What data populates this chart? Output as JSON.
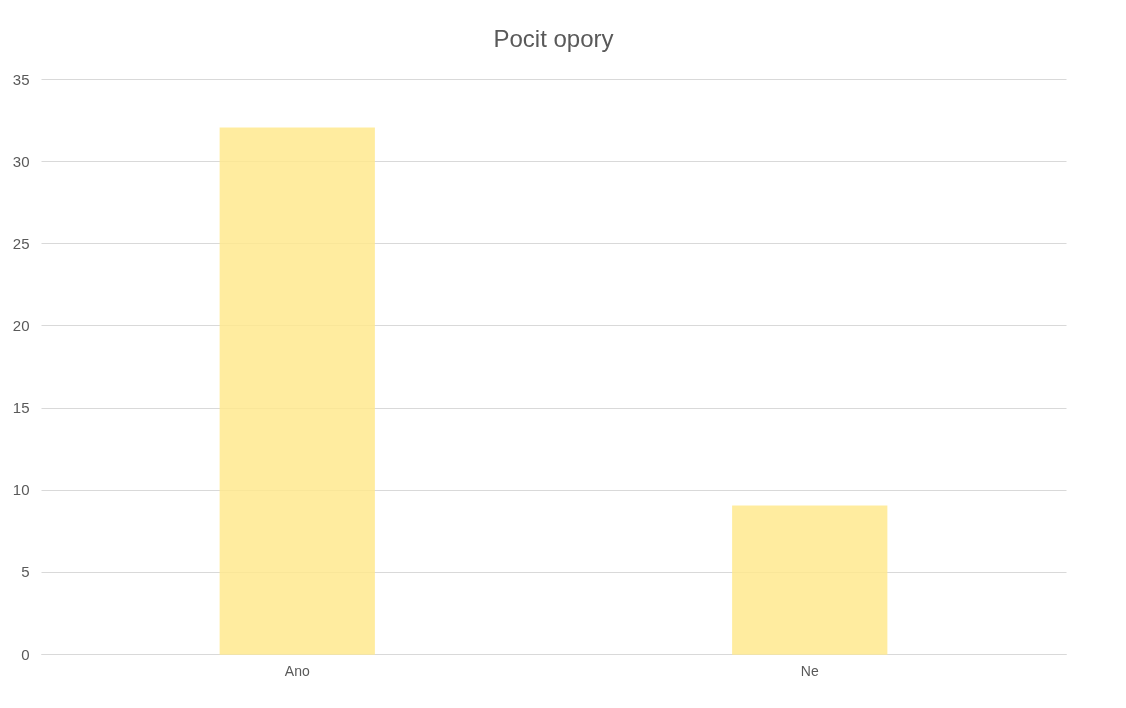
{
  "chart_data": {
    "type": "bar",
    "title": "Pocit opory",
    "categories": [
      "Ano",
      "Ne"
    ],
    "values": [
      32,
      9
    ],
    "color": "#ffe98f",
    "ylim": [
      0,
      35
    ],
    "yticks": [
      0,
      5,
      10,
      15,
      20,
      25,
      30,
      35
    ],
    "grid": "y"
  }
}
